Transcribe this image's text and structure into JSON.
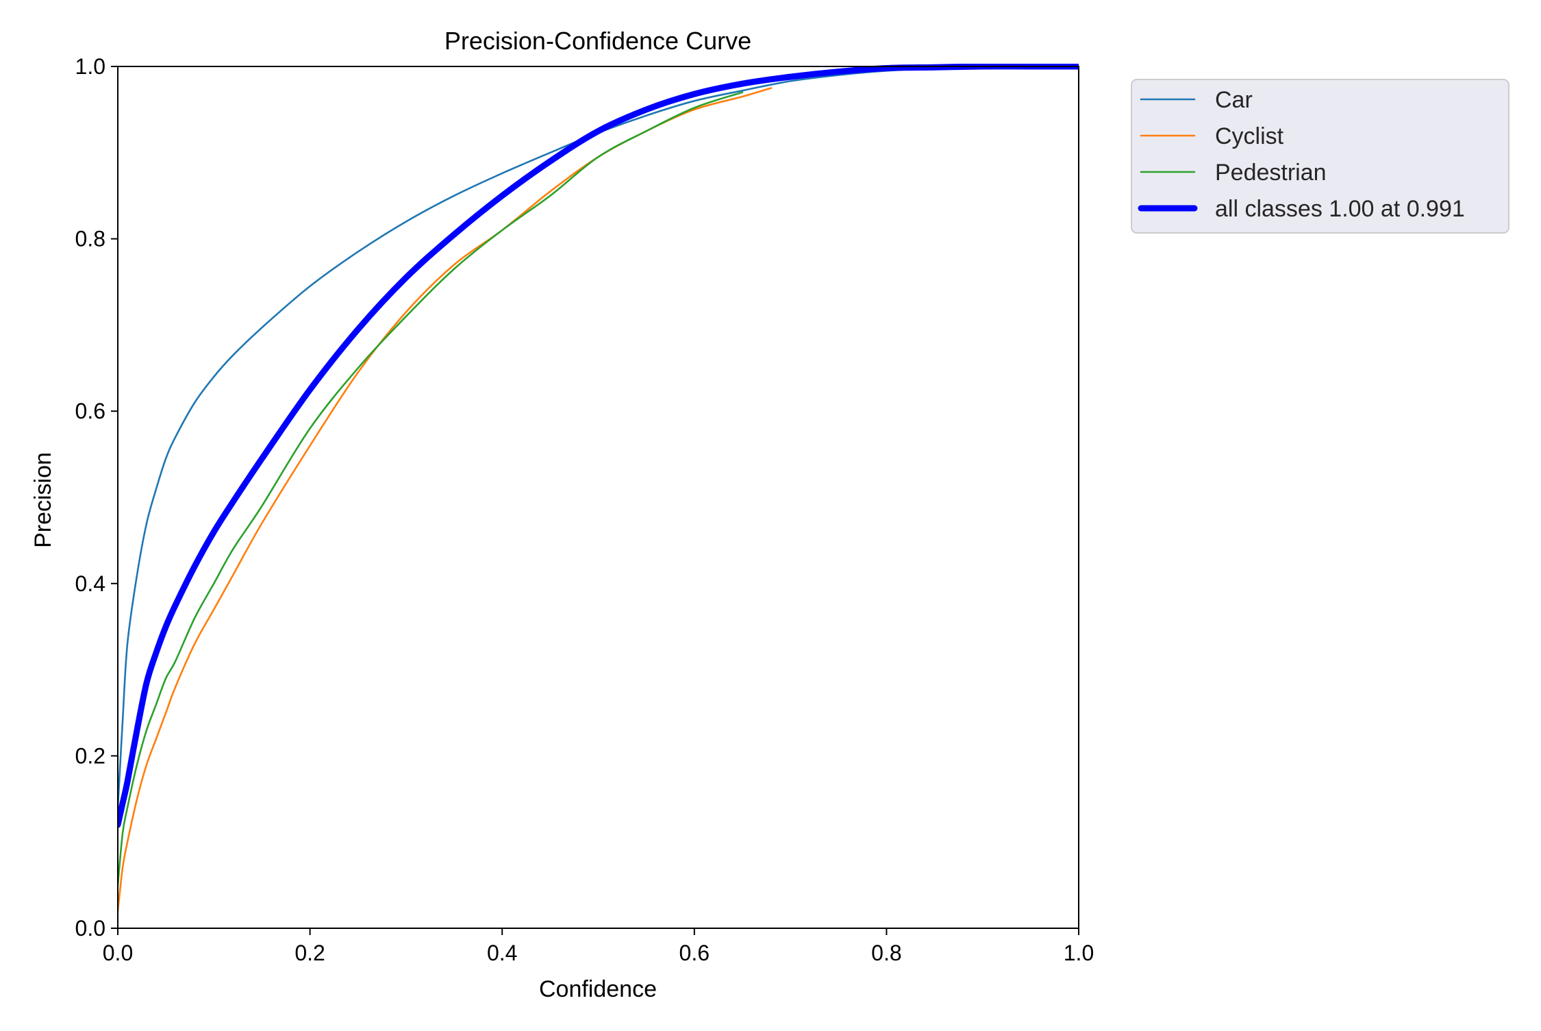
{
  "chart_data": {
    "type": "line",
    "title": "Precision-Confidence Curve",
    "xlabel": "Confidence",
    "ylabel": "Precision",
    "xlim": [
      0.0,
      1.0
    ],
    "ylim": [
      0.0,
      1.0
    ],
    "xticks": [
      "0.0",
      "0.2",
      "0.4",
      "0.6",
      "0.8",
      "1.0"
    ],
    "yticks": [
      "0.0",
      "0.2",
      "0.4",
      "0.6",
      "0.8",
      "1.0"
    ],
    "grid": false,
    "legend_position": "outside top-right",
    "series": [
      {
        "name": "Car",
        "color": "#1f77b4",
        "x": [
          0.0,
          0.005,
          0.01,
          0.02,
          0.03,
          0.04,
          0.05,
          0.06,
          0.08,
          0.1,
          0.12,
          0.15,
          0.2,
          0.25,
          0.3,
          0.35,
          0.4,
          0.45,
          0.5,
          0.55,
          0.6,
          0.65,
          0.7,
          0.75,
          0.8,
          0.85,
          0.9,
          0.95,
          1.0
        ],
        "y": [
          0.14,
          0.24,
          0.33,
          0.41,
          0.47,
          0.51,
          0.545,
          0.57,
          0.61,
          0.64,
          0.665,
          0.697,
          0.745,
          0.785,
          0.82,
          0.85,
          0.876,
          0.9,
          0.923,
          0.943,
          0.96,
          0.972,
          0.983,
          0.99,
          0.995,
          0.998,
          0.999,
          1.0,
          1.0
        ]
      },
      {
        "name": "Cyclist",
        "color": "#ff7f0e",
        "x": [
          0.0,
          0.005,
          0.01,
          0.02,
          0.03,
          0.04,
          0.05,
          0.06,
          0.08,
          0.1,
          0.12,
          0.15,
          0.2,
          0.25,
          0.3,
          0.35,
          0.4,
          0.45,
          0.5,
          0.55,
          0.6,
          0.65,
          0.68
        ],
        "y": [
          0.02,
          0.07,
          0.1,
          0.15,
          0.19,
          0.22,
          0.25,
          0.28,
          0.33,
          0.37,
          0.41,
          0.47,
          0.56,
          0.645,
          0.715,
          0.77,
          0.81,
          0.855,
          0.895,
          0.925,
          0.95,
          0.965,
          0.975
        ]
      },
      {
        "name": "Pedestrian",
        "color": "#2ca02c",
        "x": [
          0.0,
          0.005,
          0.01,
          0.02,
          0.03,
          0.04,
          0.05,
          0.06,
          0.08,
          0.1,
          0.12,
          0.15,
          0.2,
          0.25,
          0.3,
          0.35,
          0.4,
          0.45,
          0.5,
          0.55,
          0.6,
          0.65
        ],
        "y": [
          0.05,
          0.11,
          0.14,
          0.19,
          0.23,
          0.26,
          0.29,
          0.31,
          0.36,
          0.4,
          0.44,
          0.49,
          0.58,
          0.65,
          0.71,
          0.765,
          0.81,
          0.85,
          0.895,
          0.925,
          0.952,
          0.97
        ]
      },
      {
        "name": "all classes 1.00 at 0.991",
        "color": "#0000ff",
        "bold": true,
        "x": [
          0.0,
          0.005,
          0.01,
          0.02,
          0.03,
          0.04,
          0.05,
          0.06,
          0.08,
          0.1,
          0.12,
          0.15,
          0.2,
          0.25,
          0.3,
          0.35,
          0.4,
          0.45,
          0.5,
          0.55,
          0.6,
          0.65,
          0.7,
          0.75,
          0.8,
          0.85,
          0.9,
          0.95,
          1.0
        ],
        "y": [
          0.12,
          0.145,
          0.17,
          0.23,
          0.285,
          0.32,
          0.35,
          0.375,
          0.42,
          0.46,
          0.495,
          0.545,
          0.625,
          0.695,
          0.755,
          0.805,
          0.85,
          0.89,
          0.925,
          0.95,
          0.968,
          0.98,
          0.988,
          0.994,
          0.998,
          0.999,
          1.0,
          1.0,
          1.0
        ]
      }
    ]
  }
}
